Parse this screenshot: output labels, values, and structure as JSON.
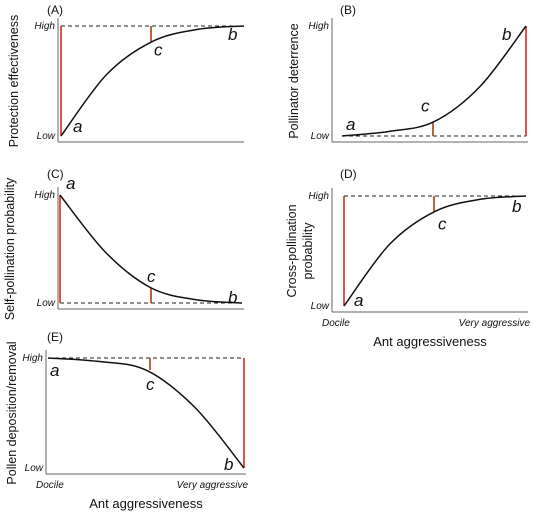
{
  "chart_data": [
    {
      "type": "line",
      "panel": "(A)",
      "ylabel": "Protection effectiveness",
      "y_ticks": [
        "High",
        "Low"
      ],
      "x": [
        0,
        0.25,
        0.5,
        0.75,
        1
      ],
      "values": [
        0.0,
        0.56,
        0.86,
        0.97,
        1.0
      ],
      "ylim": [
        0,
        1
      ],
      "reference_line": 1,
      "points": [
        {
          "label": "a",
          "x": 0,
          "y": 0.0
        },
        {
          "label": "c",
          "x": 0.5,
          "y": 0.86
        },
        {
          "label": "b",
          "x": 1,
          "y": 1.0
        }
      ]
    },
    {
      "type": "line",
      "panel": "(B)",
      "ylabel": "Pollinator deterrence",
      "y_ticks": [
        "High",
        "Low"
      ],
      "x": [
        0,
        0.25,
        0.5,
        0.75,
        1
      ],
      "values": [
        0.0,
        0.04,
        0.13,
        0.45,
        1.0
      ],
      "ylim": [
        0,
        1
      ],
      "reference_line": 0,
      "points": [
        {
          "label": "a",
          "x": 0,
          "y": 0.0
        },
        {
          "label": "c",
          "x": 0.5,
          "y": 0.13
        },
        {
          "label": "b",
          "x": 1,
          "y": 1.0
        }
      ]
    },
    {
      "type": "line",
      "panel": "(C)",
      "ylabel": "Self-pollination probability",
      "y_ticks": [
        "High",
        "Low"
      ],
      "x": [
        0,
        0.25,
        0.5,
        0.75,
        1
      ],
      "values": [
        1.0,
        0.47,
        0.14,
        0.03,
        0.0
      ],
      "ylim": [
        0,
        1
      ],
      "reference_line": 0,
      "points": [
        {
          "label": "a",
          "x": 0,
          "y": 1.0
        },
        {
          "label": "c",
          "x": 0.5,
          "y": 0.14
        },
        {
          "label": "b",
          "x": 1,
          "y": 0.0
        }
      ]
    },
    {
      "type": "line",
      "panel": "(D)",
      "ylabel": "Cross-pollination probability",
      "xlabel": "Ant aggressiveness",
      "y_ticks": [
        "High",
        "Low"
      ],
      "x_ticks": [
        "Docile",
        "Very aggressive"
      ],
      "x": [
        0,
        0.25,
        0.5,
        0.75,
        1
      ],
      "values": [
        0.0,
        0.56,
        0.86,
        0.97,
        1.0
      ],
      "ylim": [
        0,
        1
      ],
      "reference_line": 1,
      "points": [
        {
          "label": "a",
          "x": 0,
          "y": 0.0
        },
        {
          "label": "c",
          "x": 0.5,
          "y": 0.86
        },
        {
          "label": "b",
          "x": 1,
          "y": 1.0
        }
      ]
    },
    {
      "type": "line",
      "panel": "(E)",
      "ylabel": "Pollen deposition/removal",
      "xlabel": "Ant aggressiveness",
      "y_ticks": [
        "High",
        "Low"
      ],
      "x_ticks": [
        "Docile",
        "Very aggressive"
      ],
      "x": [
        0,
        0.25,
        0.5,
        0.75,
        1
      ],
      "values": [
        1.0,
        0.97,
        0.89,
        0.55,
        0.0
      ],
      "ylim": [
        0,
        1
      ],
      "reference_line": 1,
      "points": [
        {
          "label": "a",
          "x": 0,
          "y": 1.0
        },
        {
          "label": "c",
          "x": 0.5,
          "y": 0.89
        },
        {
          "label": "b",
          "x": 1,
          "y": 0.0
        }
      ]
    }
  ]
}
